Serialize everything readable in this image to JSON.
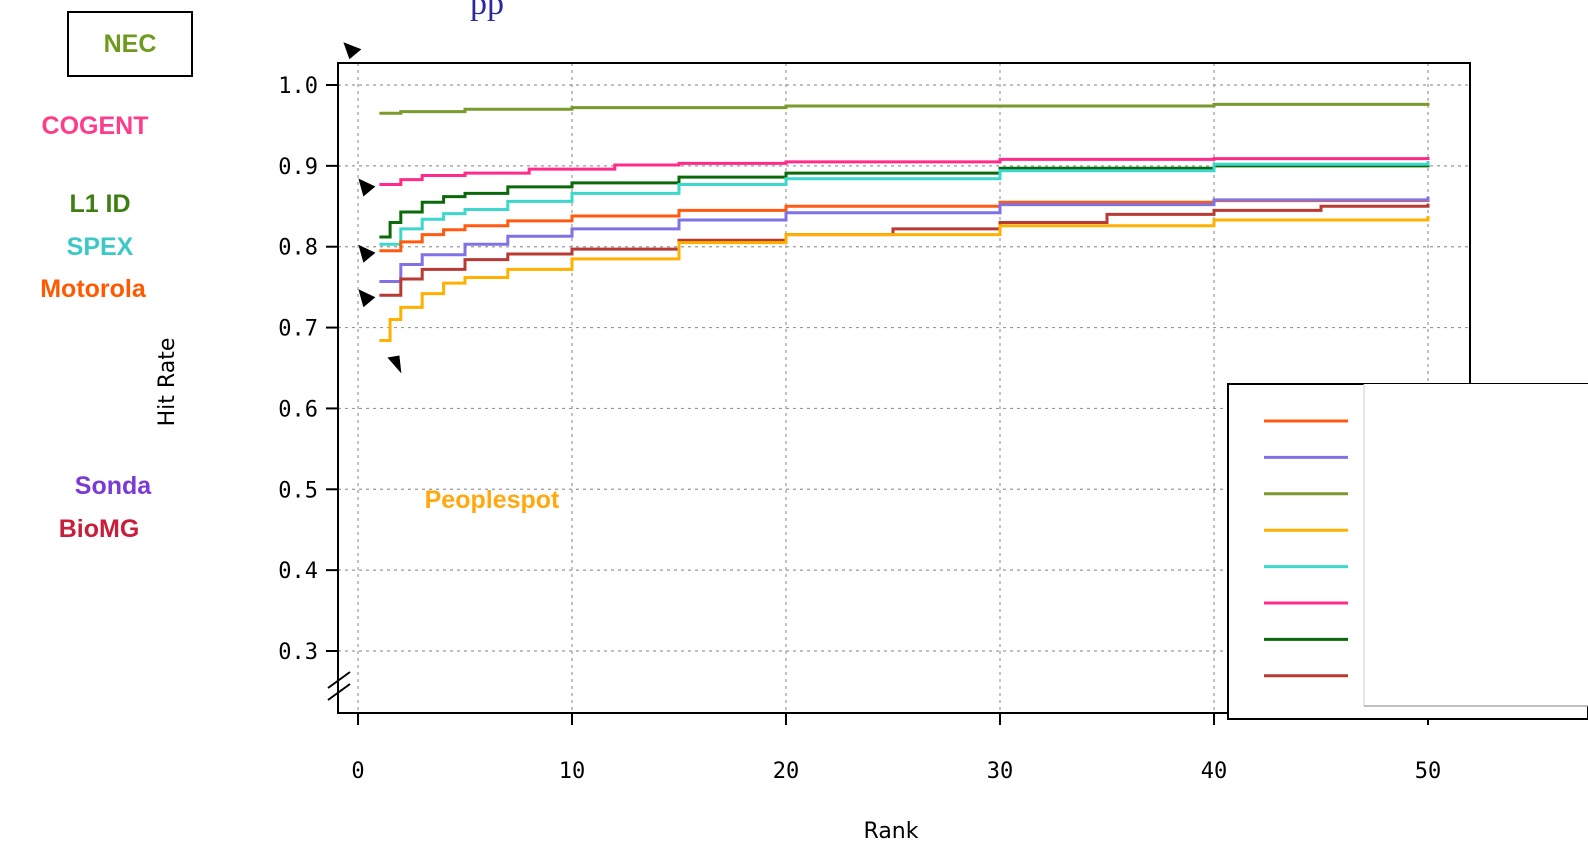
{
  "header": {
    "title_fragment": "pp"
  },
  "chart_data": {
    "type": "line",
    "xlabel": "Rank",
    "ylabel": "Hit Rate",
    "xlim": [
      0,
      50
    ],
    "ylim": [
      0.25,
      1.0
    ],
    "xticks": [
      "0",
      "10",
      "20",
      "30",
      "40",
      "50"
    ],
    "yticks": [
      "0.3",
      "0.4",
      "0.5",
      "0.6",
      "0.7",
      "0.8",
      "0.9",
      "1.0"
    ],
    "grid": true,
    "legend_placement": "bottom-right",
    "series": [
      {
        "name": "NEC",
        "color": "#7a9a2e",
        "label_color": "#6e9a1e",
        "points": [
          [
            1,
            0.965
          ],
          [
            2,
            0.967
          ],
          [
            5,
            0.97
          ],
          [
            10,
            0.972
          ],
          [
            20,
            0.974
          ],
          [
            40,
            0.976
          ],
          [
            50,
            0.978
          ]
        ]
      },
      {
        "name": "COGENT",
        "color": "#ff2a8a",
        "label_color": "#ff3c8c",
        "points": [
          [
            1,
            0.877
          ],
          [
            2,
            0.883
          ],
          [
            3,
            0.888
          ],
          [
            5,
            0.891
          ],
          [
            8,
            0.896
          ],
          [
            12,
            0.901
          ],
          [
            15,
            0.903
          ],
          [
            20,
            0.905
          ],
          [
            30,
            0.908
          ],
          [
            40,
            0.909
          ],
          [
            50,
            0.911
          ]
        ]
      },
      {
        "name": "L1 ID",
        "color": "#0a6a0a",
        "label_color": "#3e7e12",
        "points": [
          [
            1,
            0.812
          ],
          [
            1.5,
            0.83
          ],
          [
            2,
            0.843
          ],
          [
            3,
            0.855
          ],
          [
            4,
            0.862
          ],
          [
            5,
            0.866
          ],
          [
            7,
            0.874
          ],
          [
            10,
            0.879
          ],
          [
            15,
            0.886
          ],
          [
            20,
            0.891
          ],
          [
            30,
            0.897
          ],
          [
            40,
            0.9
          ],
          [
            50,
            0.901
          ]
        ]
      },
      {
        "name": "SPEX",
        "color": "#3dd8cc",
        "label_color": "#3dc8c8",
        "points": [
          [
            1,
            0.803
          ],
          [
            2,
            0.822
          ],
          [
            3,
            0.834
          ],
          [
            4,
            0.841
          ],
          [
            5,
            0.846
          ],
          [
            7,
            0.856
          ],
          [
            10,
            0.866
          ],
          [
            15,
            0.877
          ],
          [
            20,
            0.884
          ],
          [
            30,
            0.894
          ],
          [
            40,
            0.902
          ],
          [
            50,
            0.906
          ]
        ]
      },
      {
        "name": "Motorola",
        "color": "#ff5a10",
        "label_color": "#ff5a00",
        "points": [
          [
            1,
            0.795
          ],
          [
            2,
            0.806
          ],
          [
            3,
            0.815
          ],
          [
            4,
            0.821
          ],
          [
            5,
            0.826
          ],
          [
            7,
            0.832
          ],
          [
            10,
            0.838
          ],
          [
            15,
            0.845
          ],
          [
            20,
            0.85
          ],
          [
            30,
            0.855
          ],
          [
            40,
            0.857
          ],
          [
            50,
            0.858
          ]
        ]
      },
      {
        "name": "Sonda",
        "color": "#7f72e6",
        "label_color": "#7a3ad6",
        "points": [
          [
            1,
            0.757
          ],
          [
            2,
            0.778
          ],
          [
            3,
            0.79
          ],
          [
            5,
            0.803
          ],
          [
            7,
            0.813
          ],
          [
            10,
            0.822
          ],
          [
            15,
            0.833
          ],
          [
            20,
            0.842
          ],
          [
            30,
            0.852
          ],
          [
            40,
            0.858
          ],
          [
            50,
            0.862
          ]
        ]
      },
      {
        "name": "BioMG",
        "color": "#b83a32",
        "label_color": "#c81e3a",
        "points": [
          [
            1,
            0.74
          ],
          [
            2,
            0.76
          ],
          [
            3,
            0.772
          ],
          [
            5,
            0.784
          ],
          [
            7,
            0.791
          ],
          [
            10,
            0.797
          ],
          [
            15,
            0.808
          ],
          [
            20,
            0.815
          ],
          [
            25,
            0.822
          ],
          [
            30,
            0.83
          ],
          [
            35,
            0.84
          ],
          [
            40,
            0.845
          ],
          [
            45,
            0.85
          ],
          [
            50,
            0.853
          ]
        ]
      },
      {
        "name": "Peoplespot",
        "color": "#ffb000",
        "label_color": "#ffa810",
        "points": [
          [
            1,
            0.684
          ],
          [
            1.5,
            0.71
          ],
          [
            2,
            0.725
          ],
          [
            3,
            0.742
          ],
          [
            4,
            0.755
          ],
          [
            5,
            0.762
          ],
          [
            7,
            0.772
          ],
          [
            10,
            0.785
          ],
          [
            15,
            0.805
          ],
          [
            20,
            0.815
          ],
          [
            30,
            0.826
          ],
          [
            40,
            0.833
          ],
          [
            50,
            0.838
          ]
        ]
      }
    ],
    "legend_swatch_order": [
      "Motorola",
      "Sonda",
      "NEC",
      "Peoplespot",
      "SPEX",
      "COGENT",
      "L1 ID",
      "BioMG"
    ],
    "outside_labels": [
      "NEC",
      "COGENT",
      "L1 ID",
      "SPEX",
      "Motorola",
      "Sonda",
      "BioMG"
    ],
    "inside_label": "Peoplespot"
  }
}
